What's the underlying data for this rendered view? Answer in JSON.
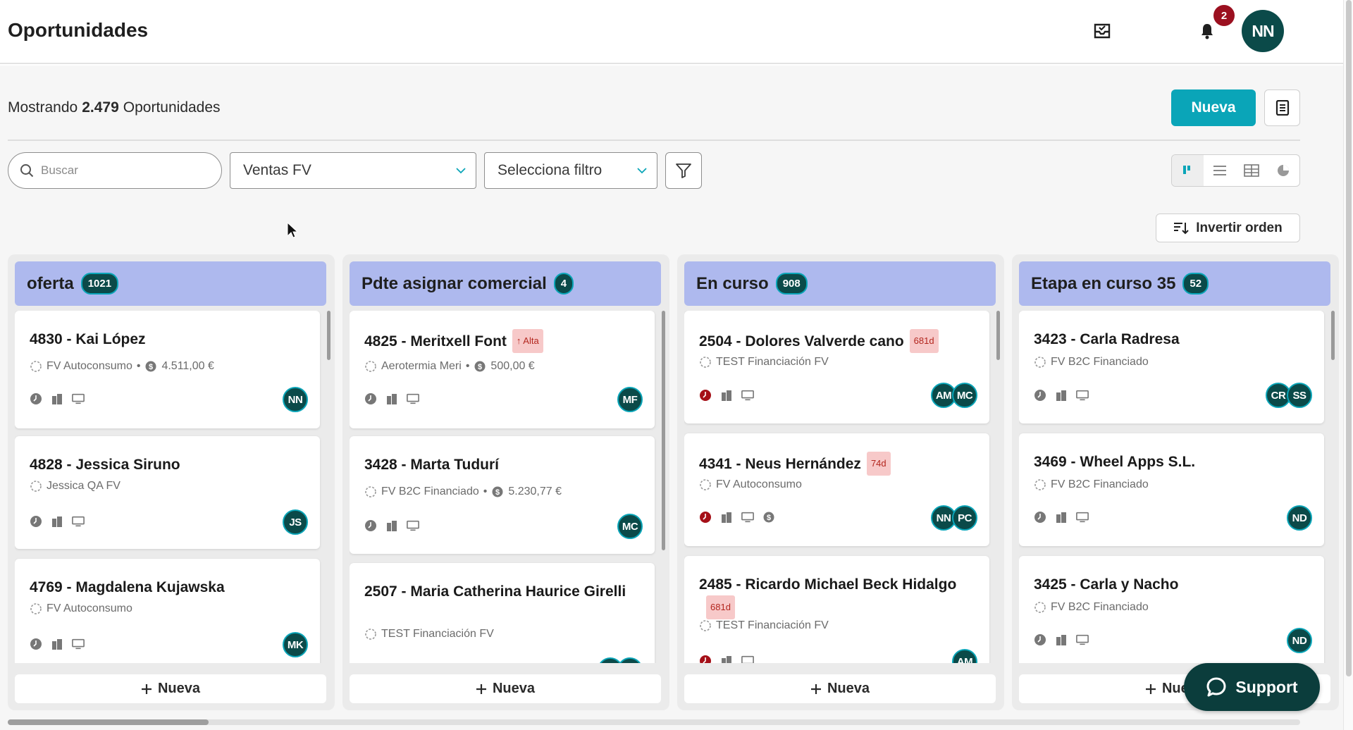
{
  "header": {
    "title": "Oportunidades",
    "notifications_count": "2",
    "user_initials": "NN"
  },
  "toolbar": {
    "count_prefix": "Mostrando",
    "count_value": "2.479",
    "count_suffix": "Oportunidades",
    "new_label": "Nueva",
    "search_placeholder": "Buscar",
    "pipeline_value": "Ventas FV",
    "filter_value": "Selecciona filtro",
    "invert_label": "Invertir orden",
    "active_view": "kanban"
  },
  "columns": [
    {
      "title": "oferta",
      "count": "1021",
      "new_label": "Nueva",
      "cards": [
        {
          "title": "4830 - Kai López",
          "sub": "FV Autoconsumo",
          "amount": "4.511,00 €",
          "avatars": [
            "NN"
          ]
        },
        {
          "title": "4828 - Jessica Siruno",
          "sub": "Jessica QA FV",
          "avatars": [
            "JS"
          ]
        },
        {
          "title": "4769 - Magdalena Kujawska",
          "sub": "FV Autoconsumo",
          "avatars": [
            "MK"
          ]
        }
      ]
    },
    {
      "title": "Pdte asignar comercial",
      "count": "4",
      "new_label": "Nueva",
      "cards": [
        {
          "title": "4825 - Meritxell Font",
          "tag": "Alta",
          "sub": "Aerotermia Meri",
          "amount": "500,00 €",
          "avatars": [
            "MF"
          ]
        },
        {
          "title": "3428 - Marta Tudurí",
          "sub": "FV B2C Financiado",
          "amount": "5.230,77 €",
          "avatars": [
            "MC"
          ]
        },
        {
          "title": "2507 - Maria Catherina Haurice Girelli",
          "sub": "TEST Financiación FV",
          "avatars": []
        }
      ]
    },
    {
      "title": "En curso",
      "count": "908",
      "new_label": "Nueva",
      "cards": [
        {
          "title": "2504 - Dolores Valverde cano",
          "tag": "681d",
          "sub": "TEST Financiación FV",
          "avatars": [
            "AM",
            "MC"
          ]
        },
        {
          "title": "4341 - Neus Hernández",
          "tag": "74d",
          "sub": "FV Autoconsumo",
          "avatars": [
            "NN",
            "PC"
          ]
        },
        {
          "title": "2485 - Ricardo Michael Beck Hidalgo",
          "tag": "681d",
          "sub": "TEST Financiación FV",
          "avatars": [
            "AM"
          ]
        }
      ]
    },
    {
      "title": "Etapa en curso 35",
      "count": "52",
      "new_label": "Nueva",
      "cards": [
        {
          "title": "3423 - Carla Radresa",
          "sub": "FV B2C Financiado",
          "avatars": [
            "CR",
            "SS"
          ]
        },
        {
          "title": "3469 - Wheel Apps S.L.",
          "sub": "FV B2C Financiado",
          "avatars": [
            "ND"
          ]
        },
        {
          "title": "3425 - Carla y Nacho",
          "sub": "FV B2C Financiado",
          "avatars": [
            "ND"
          ]
        }
      ]
    }
  ],
  "support": {
    "label": "Support"
  },
  "colors": {
    "accent": "#0aa5b8",
    "avatar": "#0b4a49",
    "column_header": "#aeb9ee",
    "tag_red": "#f7c9c9",
    "danger": "#9b1020"
  }
}
